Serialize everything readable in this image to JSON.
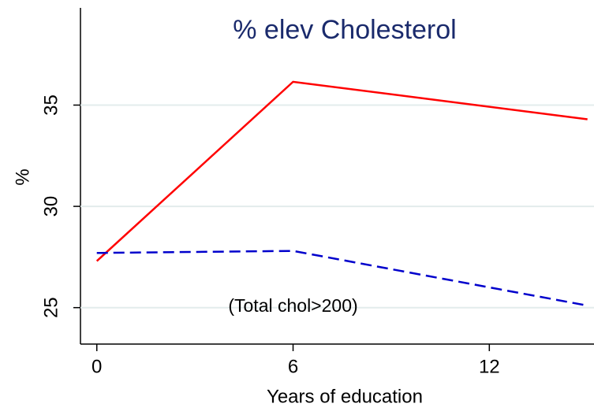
{
  "chart_data": {
    "type": "line",
    "title": "% elev Cholesterol",
    "x_label": "Years of education",
    "y_label": "%",
    "annotation": "(Total chol>200)",
    "x": [
      0,
      6,
      15
    ],
    "series": [
      {
        "color": "#ff0000",
        "dash": false,
        "values": [
          27.3,
          36.15,
          34.3
        ]
      },
      {
        "color": "#0000cc",
        "dash": true,
        "values": [
          27.7,
          27.8,
          25.1
        ]
      }
    ],
    "xlim": [
      -0.5,
      15.2
    ],
    "xticks": [
      0,
      6,
      12
    ],
    "ylim": [
      23.2,
      39.8
    ],
    "yticks": [
      25,
      30,
      35
    ],
    "grid": true
  }
}
